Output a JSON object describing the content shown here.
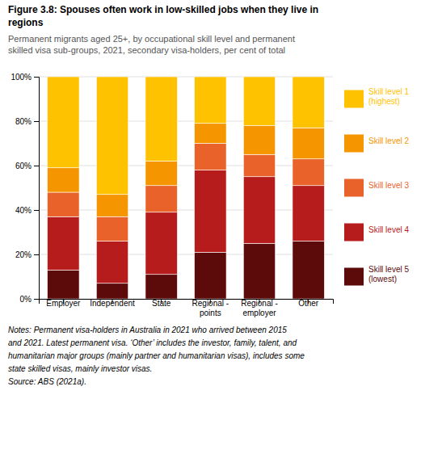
{
  "chart_data": {
    "type": "bar",
    "stacked": true,
    "title": "Figure 3.8: Spouses often work in low-skilled jobs when they live in\nregions",
    "subtitle": "Permanent migrants aged 25+, by occupational skill level and permanent\nskilled visa sub-groups, 2021, secondary visa-holders, per cent of total",
    "categories": [
      "Employer",
      "Independent",
      "State",
      "Regional -\npoints",
      "Regional -\nemployer",
      "Other"
    ],
    "series": [
      {
        "name": "Skill level 5\n(lowest)",
        "color": "#5c0a0a",
        "values": [
          13,
          7,
          11,
          21,
          25,
          26
        ]
      },
      {
        "name": "Skill level 4",
        "color": "#b71c1c",
        "values": [
          24,
          19,
          28,
          37,
          30,
          25
        ]
      },
      {
        "name": "Skill level 3",
        "color": "#e8622a",
        "values": [
          11,
          11,
          12,
          12,
          10,
          12
        ]
      },
      {
        "name": "Skill level 2",
        "color": "#f59600",
        "values": [
          11,
          10,
          11,
          9,
          13,
          14
        ]
      },
      {
        "name": "Skill level 1\n(highest)",
        "color": "#ffc200",
        "values": [
          41,
          53,
          38,
          21,
          22,
          23
        ]
      }
    ],
    "ylim": [
      0,
      100
    ],
    "yticks": [
      {
        "value": 0,
        "label": "0%"
      },
      {
        "value": 20,
        "label": "20%"
      },
      {
        "value": 40,
        "label": "40%"
      },
      {
        "value": 60,
        "label": "60%"
      },
      {
        "value": 80,
        "label": "80%"
      },
      {
        "value": 100,
        "label": "100%"
      }
    ],
    "grid": true,
    "legend": "right",
    "notes": [
      "Notes: Permanent visa-holders in Australia in 2021 who arrived between 2015",
      "and 2021. Latest permanent visa. ‘Other’ includes the investor, family, talent, and",
      "humanitarian major groups (mainly partner and humanitarian visas), includes some",
      "state skilled visas, mainly investor visas."
    ],
    "source": "Source: ABS (2021a)."
  }
}
